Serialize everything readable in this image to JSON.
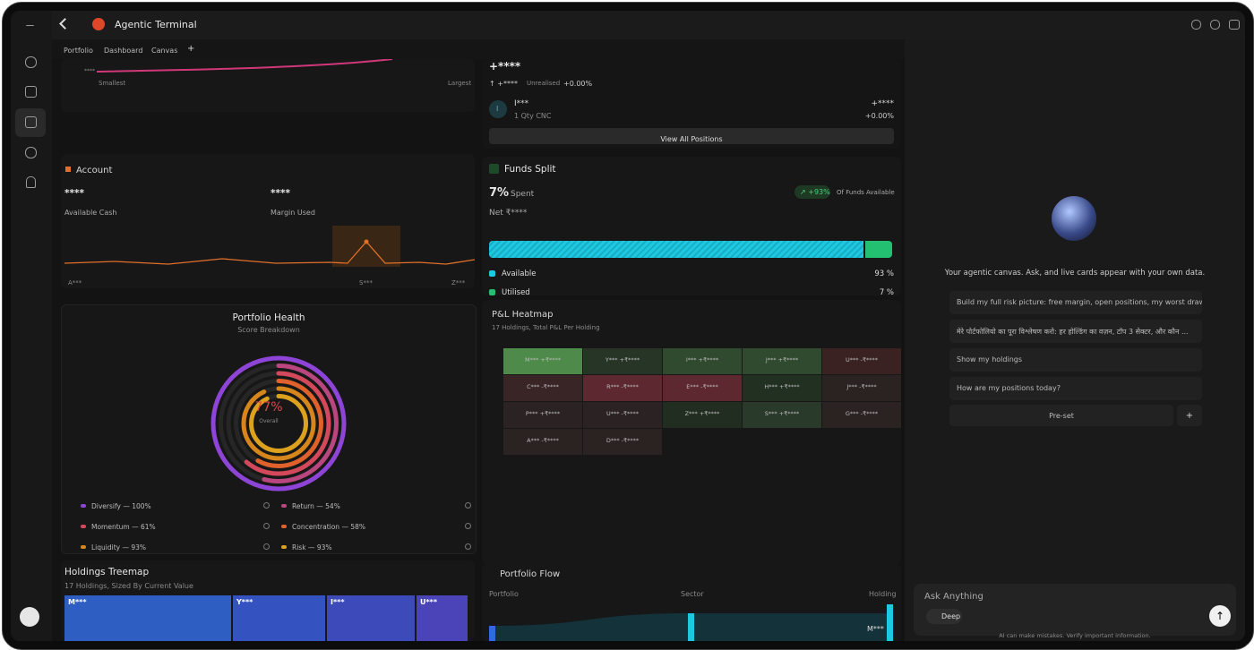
{
  "header": {
    "title": "Agentic Terminal",
    "tabs": [
      "Portfolio",
      "Dashboard",
      "Canvas",
      "+"
    ]
  },
  "size_chart": {
    "min_label": "Smallest",
    "max_label": "Largest",
    "axis_label": "****"
  },
  "account": {
    "title": "Account",
    "available_cash": {
      "value": "****",
      "label": "Available Cash"
    },
    "margin_used": {
      "value": "****",
      "label": "Margin Used"
    },
    "x_labels": [
      "A***",
      "S***",
      "Z***"
    ]
  },
  "health": {
    "title": "Portfolio Health",
    "subtitle": "Score Breakdown",
    "score": "77%",
    "score_label": "Overall",
    "metrics": [
      {
        "label": "Diversify — 100%",
        "value": 100,
        "color": "#8e44d6"
      },
      {
        "label": "Return — 54%",
        "value": 54,
        "color": "#b9467f"
      },
      {
        "label": "Momentum — 61%",
        "value": 61,
        "color": "#d4485c"
      },
      {
        "label": "Concentration — 58%",
        "value": 58,
        "color": "#e0612c"
      },
      {
        "label": "Liquidity — 93%",
        "value": 93,
        "color": "#d6861a"
      },
      {
        "label": "Risk — 93%",
        "value": 93,
        "color": "#dca21e"
      }
    ]
  },
  "treemap": {
    "title": "Holdings Treemap",
    "subtitle": "17 Holdings, Sized By Current Value",
    "tiles": [
      {
        "label": "M***",
        "color": "#2f5ec2"
      },
      {
        "label": "Y***",
        "color": "#3553c0"
      },
      {
        "label": "I***",
        "color": "#3d4ab9"
      },
      {
        "label": "U***",
        "color": "#4a44b8"
      }
    ]
  },
  "positions": {
    "total": "+****",
    "change": "+****",
    "change_label": "Unrealised",
    "change_pct": "+0.00%",
    "holdings": [
      {
        "avatar": "I",
        "name": "I***",
        "qty": "1 Qty CNC",
        "pnl": "+****",
        "pct": "+0.00%"
      }
    ],
    "button": "View All Positions"
  },
  "funds": {
    "title": "Funds Split",
    "spent": "7%",
    "spent_label": "Spent",
    "badge": "+93%",
    "badge_label": "Of Funds Available",
    "net": "Net ₹****",
    "parts": [
      {
        "name": "Available",
        "value": 93,
        "value_label": "93 %",
        "color": "#1ec8e0"
      },
      {
        "name": "Utilised",
        "value": 7,
        "value_label": "7 %",
        "color": "#22c070"
      }
    ]
  },
  "heatmap": {
    "title": "P&L Heatmap",
    "subtitle": "17 Holdings, Total P&L Per Holding",
    "cells": [
      {
        "label": "M*** +₹****",
        "color": "#4e8a4a"
      },
      {
        "label": "Y*** +₹****",
        "color": "#263526"
      },
      {
        "label": "I*** +₹****",
        "color": "#2f4a2e"
      },
      {
        "label": "J*** +₹****",
        "color": "#2f4a2e"
      },
      {
        "label": "U*** -₹****",
        "color": "#3a2222"
      },
      {
        "label": "C*** -₹****",
        "color": "#3a2526"
      },
      {
        "label": "R*** -₹****",
        "color": "#5e2830"
      },
      {
        "label": "E*** -₹****",
        "color": "#5e2830"
      },
      {
        "label": "H*** +₹****",
        "color": "#223022"
      },
      {
        "label": "J*** -₹****",
        "color": "#2b2222"
      },
      {
        "label": "P*** +₹****",
        "color": "#2b2323"
      },
      {
        "label": "U*** -₹****",
        "color": "#2b2323"
      },
      {
        "label": "Z*** +₹****",
        "color": "#222d22"
      },
      {
        "label": "S*** +₹****",
        "color": "#2a3a2a"
      },
      {
        "label": "G*** -₹****",
        "color": "#2b2222"
      },
      {
        "label": "A*** -₹****",
        "color": "#2b2222"
      },
      {
        "label": "D*** -₹****",
        "color": "#2b2222"
      }
    ]
  },
  "flow": {
    "title": "Portfolio Flow",
    "columns": [
      "Portfolio",
      "Sector",
      "Holding"
    ],
    "node_label": "M***"
  },
  "assistant": {
    "intro": "Your agentic canvas. Ask, and live cards appear with your own data.",
    "suggestions": [
      "Build my full risk picture: free margin, open positions, my worst draw...",
      "मेरे पोर्टफोलियो का पूरा विश्लेषण करो: हर होल्डिंग का वज़न, टॉप 3 सेक्टर, और कौन ...",
      "Show my holdings",
      "How are my positions today?"
    ],
    "preset": "Pre-set",
    "add": "+",
    "input_placeholder": "Ask Anything",
    "mode": "Deep",
    "disclaimer": "AI can make mistakes. Verify important information."
  }
}
